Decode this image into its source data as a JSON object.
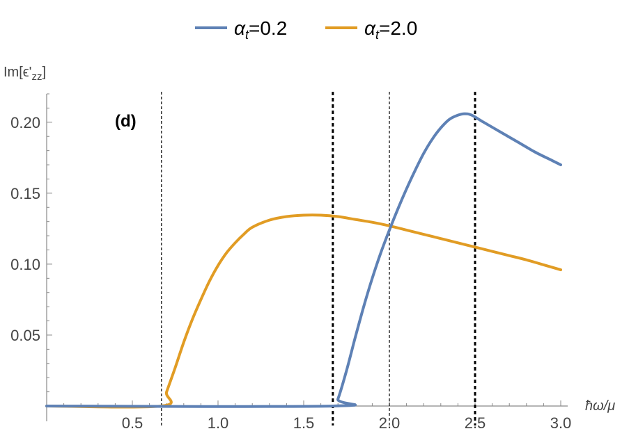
{
  "chart_data": {
    "type": "line",
    "title": "",
    "xlabel": "ħω/μ",
    "ylabel": "Im[ϵ'zz]",
    "ylabel_parts": {
      "base": "Im[ϵ'",
      "sub": "zz",
      "close": "]"
    },
    "xlim": [
      0.0,
      3.0
    ],
    "ylim": [
      0.0,
      0.22
    ],
    "x_ticks": [
      0.5,
      1.0,
      1.5,
      2.0,
      2.5,
      3.0
    ],
    "x_tick_labels": [
      "0.5",
      "1.0",
      "1.5",
      "2.0",
      "2.5",
      "3.0"
    ],
    "y_ticks": [
      0.05,
      0.1,
      0.15,
      0.2
    ],
    "y_tick_labels": [
      "0.05",
      "0.10",
      "0.15",
      "0.20"
    ],
    "legend_position": "top-center",
    "annotation": "(d)",
    "series": [
      {
        "name": "αt=0.2",
        "legend": {
          "base": "α",
          "sub": "t",
          "rest": "=0.2"
        },
        "color": "#5e81b5",
        "points": [
          [
            0.0,
            0.0
          ],
          [
            1.67,
            0.0
          ],
          [
            1.7,
            0.005
          ],
          [
            1.75,
            0.025
          ],
          [
            1.8,
            0.048
          ],
          [
            1.85,
            0.07
          ],
          [
            1.9,
            0.09
          ],
          [
            1.95,
            0.108
          ],
          [
            2.0,
            0.124
          ],
          [
            2.05,
            0.139
          ],
          [
            2.1,
            0.153
          ],
          [
            2.15,
            0.166
          ],
          [
            2.2,
            0.178
          ],
          [
            2.25,
            0.188
          ],
          [
            2.3,
            0.196
          ],
          [
            2.35,
            0.202
          ],
          [
            2.4,
            0.205
          ],
          [
            2.44,
            0.206
          ],
          [
            2.48,
            0.205
          ],
          [
            2.55,
            0.2
          ],
          [
            2.65,
            0.193
          ],
          [
            2.75,
            0.186
          ],
          [
            2.85,
            0.179
          ],
          [
            2.95,
            0.173
          ],
          [
            3.0,
            0.17
          ]
        ]
      },
      {
        "name": "αt=2.0",
        "legend": {
          "base": "α",
          "sub": "t",
          "rest": "=2.0"
        },
        "color": "#e19c24",
        "points": [
          [
            0.0,
            0.0
          ],
          [
            0.67,
            0.0
          ],
          [
            0.7,
            0.01
          ],
          [
            0.75,
            0.027
          ],
          [
            0.8,
            0.045
          ],
          [
            0.85,
            0.061
          ],
          [
            0.9,
            0.075
          ],
          [
            0.95,
            0.088
          ],
          [
            1.0,
            0.099
          ],
          [
            1.05,
            0.108
          ],
          [
            1.1,
            0.115
          ],
          [
            1.15,
            0.121
          ],
          [
            1.2,
            0.126
          ],
          [
            1.3,
            0.131
          ],
          [
            1.4,
            0.1335
          ],
          [
            1.5,
            0.1345
          ],
          [
            1.6,
            0.1345
          ],
          [
            1.7,
            0.1335
          ],
          [
            1.8,
            0.1315
          ],
          [
            1.9,
            0.1295
          ],
          [
            2.0,
            0.127
          ],
          [
            2.1,
            0.124
          ],
          [
            2.2,
            0.121
          ],
          [
            2.3,
            0.118
          ],
          [
            2.4,
            0.115
          ],
          [
            2.5,
            0.112
          ],
          [
            2.6,
            0.109
          ],
          [
            2.7,
            0.106
          ],
          [
            2.8,
            0.103
          ],
          [
            2.9,
            0.0995
          ],
          [
            3.0,
            0.096
          ]
        ]
      }
    ],
    "vertical_lines": [
      {
        "x": 0.67,
        "style": "thin"
      },
      {
        "x": 1.67,
        "style": "thick"
      },
      {
        "x": 2.0,
        "style": "thin"
      },
      {
        "x": 2.5,
        "style": "thick"
      }
    ]
  }
}
